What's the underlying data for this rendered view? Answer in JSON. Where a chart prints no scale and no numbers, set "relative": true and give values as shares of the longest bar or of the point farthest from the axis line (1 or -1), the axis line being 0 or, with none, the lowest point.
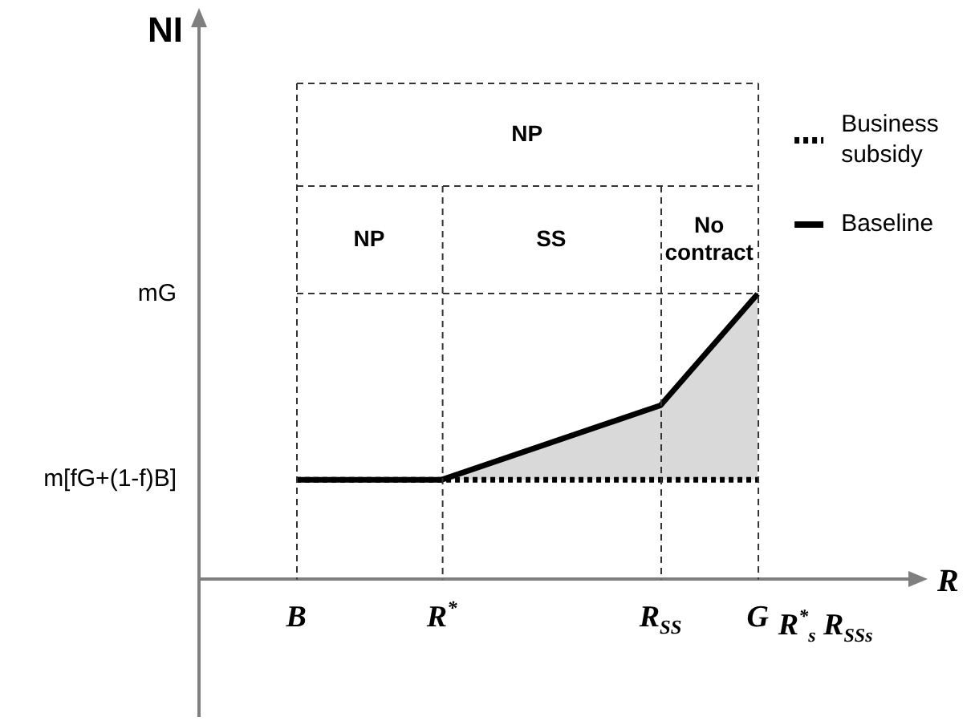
{
  "chart_data": {
    "type": "line",
    "relative": true,
    "xlabel": "R",
    "categories": [
      null,
      null,
      null,
      null,
      "B",
      null,
      null,
      null,
      null,
      null,
      "R$^{*}$",
      null,
      null,
      null,
      null,
      null,
      null,
      null,
      null,
      "R$_{SS}$",
      null,
      null,
      null,
      "G",
      null,
      null,
      null,
      null,
      null,
      null,
      null
    ],
    "series": [
      {
        "name": "Business subsidy",
        "color": "#000000",
        "line_style": "dotted",
        "x": [
          "B",
          "R$^{*}$",
          "R$_{SS}$",
          "G"
        ],
        "values": [
          0.35,
          0.35,
          0.35,
          0.35
        ]
      },
      {
        "name": "Baseline",
        "type": "area",
        "color": "#000000",
        "line_style": "solid",
        "x": [
          "B",
          "R$^{*}$",
          "R$_{SS}$",
          "G"
        ],
        "values": [
          0.35,
          0.35,
          0.61,
          1
        ]
      }
    ],
    "annotations": [
      "NP",
      "NP",
      "SS",
      "No contract",
      "mG",
      "m[fG+(1-f)B]",
      "R$^{*}$$_{s}$ R$_{SSs}$",
      "NI"
    ],
    "legend": "top right",
    "marker": "none",
    "grid": true
  }
}
